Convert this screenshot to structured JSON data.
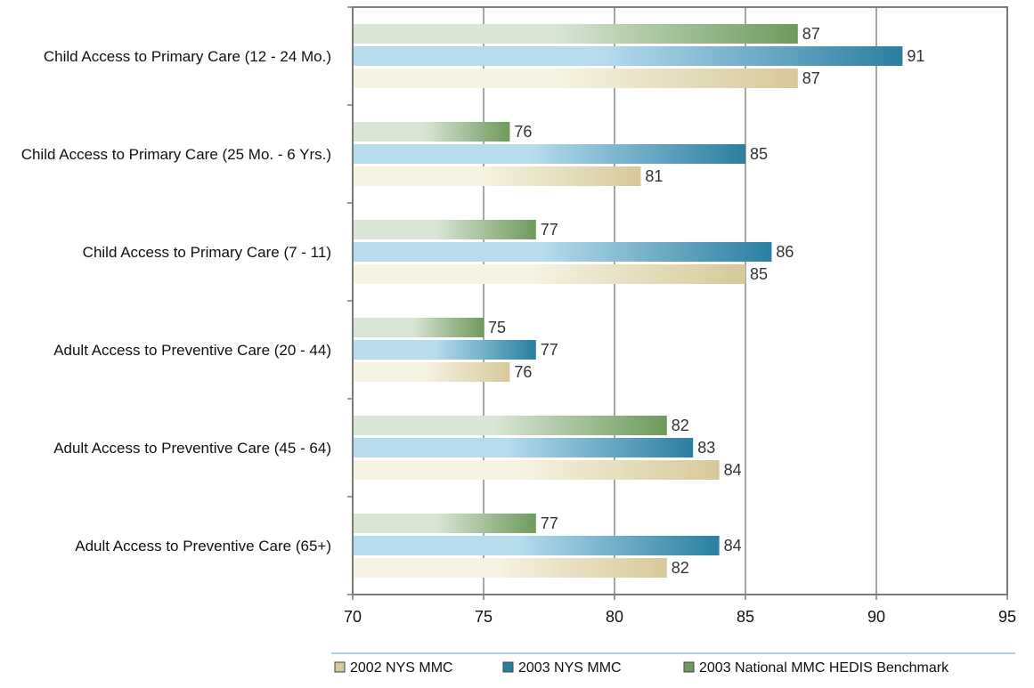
{
  "chart_data": {
    "type": "bar",
    "orientation": "horizontal",
    "categories": [
      "Child Access to Primary Care (12 - 24 Mo.)",
      "Child Access to Primary Care (25 Mo. - 6 Yrs.)",
      "Child Access to Primary Care (7 - 11)",
      "Adult Access to Preventive Care (20 - 44)",
      "Adult Access to Preventive Care (45 - 64)",
      "Adult Access to Preventive Care (65+)"
    ],
    "series": [
      {
        "name": "2003 National MMC HEDIS Benchmark",
        "values": [
          87,
          76,
          77,
          75,
          82,
          77
        ],
        "color": "#6e9a5c",
        "light": "#d9e6d6"
      },
      {
        "name": "2003 NYS MMC",
        "values": [
          91,
          85,
          86,
          77,
          83,
          84
        ],
        "color": "#2a7fa0",
        "light": "#b7dcee"
      },
      {
        "name": "2002 NYS MMC",
        "values": [
          87,
          81,
          85,
          76,
          84,
          82
        ],
        "color": "#d6c99a",
        "light": "#f6f3e2"
      }
    ],
    "legend_order": [
      "2002 NYS MMC",
      "2003 NYS MMC",
      "2003 National MMC HEDIS Benchmark"
    ],
    "legend_position": "bottom",
    "xlim": [
      70,
      95
    ],
    "xticks": [
      70,
      75,
      80,
      85,
      90,
      95
    ],
    "grid": "vertical",
    "title": "",
    "xlabel": "",
    "ylabel": "",
    "colors": {
      "axis": "#7a7a7a",
      "grid": "#4d4d4d",
      "legend_rule": "#5aa3c0"
    }
  }
}
